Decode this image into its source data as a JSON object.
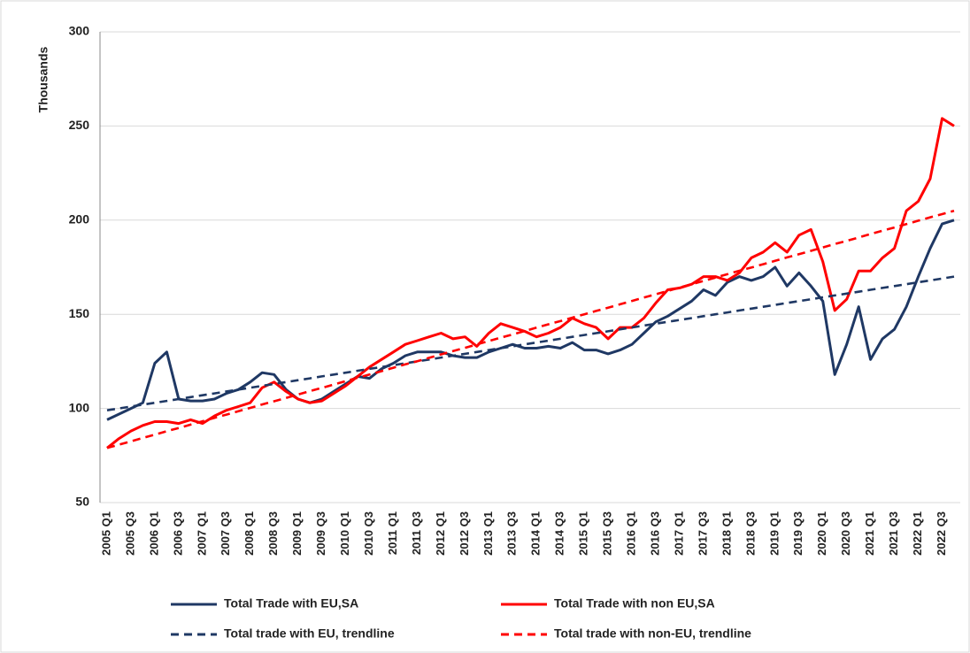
{
  "chart_data": {
    "type": "line",
    "y_label": "Thousands",
    "categories": [
      "2005 Q1",
      null,
      "2005 Q3",
      null,
      "2006 Q1",
      null,
      "2006 Q3",
      null,
      "2007 Q1",
      null,
      "2007 Q3",
      null,
      "2008 Q1",
      null,
      "2008 Q3",
      null,
      "2009 Q1",
      null,
      "2009 Q3",
      null,
      "2010 Q1",
      null,
      "2010 Q3",
      null,
      "2011 Q1",
      null,
      "2011 Q3",
      null,
      "2012 Q1",
      null,
      "2012 Q3",
      null,
      "2013 Q1",
      null,
      "2013 Q3",
      null,
      "2014 Q1",
      null,
      "2014 Q3",
      null,
      "2015 Q1",
      null,
      "2015 Q3",
      null,
      "2016 Q1",
      null,
      "2016 Q3",
      null,
      "2017 Q1",
      null,
      "2017 Q3",
      null,
      "2018 Q1",
      null,
      "2018 Q3",
      null,
      "2019 Q1",
      null,
      "2019 Q3",
      null,
      "2020 Q1",
      null,
      "2020 Q3",
      null,
      "2021 Q1",
      null,
      "2021 Q3",
      null,
      "2022 Q1",
      null,
      "2022 Q3",
      null
    ],
    "series": [
      {
        "name": "Total Trade with EU,SA",
        "color": "#1f3864",
        "dash": false,
        "values": [
          94,
          97,
          100,
          103,
          124,
          130,
          105,
          104,
          104,
          105,
          108,
          110,
          114,
          119,
          118,
          110,
          105,
          103,
          105,
          109,
          113,
          117,
          116,
          121,
          124,
          128,
          130,
          130,
          130,
          128,
          127,
          127,
          130,
          132,
          134,
          132,
          132,
          133,
          132,
          135,
          131,
          131,
          129,
          131,
          134,
          140,
          146,
          149,
          153,
          157,
          163,
          160,
          167,
          170,
          168,
          170,
          175,
          165,
          172,
          165,
          157,
          118,
          134,
          154,
          126,
          137,
          142,
          154,
          170,
          185,
          198,
          200
        ]
      },
      {
        "name": "Total Trade with non EU,SA",
        "color": "#ff0000",
        "dash": false,
        "values": [
          79,
          84,
          88,
          91,
          93,
          93,
          92,
          94,
          92,
          96,
          99,
          101,
          103,
          111,
          114,
          109,
          105,
          103,
          104,
          108,
          112,
          117,
          122,
          126,
          130,
          134,
          136,
          138,
          140,
          137,
          138,
          133,
          140,
          145,
          143,
          141,
          138,
          140,
          143,
          148,
          145,
          143,
          137,
          143,
          143,
          148,
          156,
          163,
          164,
          166,
          170,
          170,
          168,
          172,
          180,
          183,
          188,
          183,
          192,
          195,
          178,
          152,
          158,
          173,
          173,
          180,
          185,
          205,
          210,
          222,
          254,
          250
        ]
      },
      {
        "name": "Total trade with EU, trendline",
        "color": "#1f3864",
        "dash": true,
        "values": [
          99,
          100,
          101,
          102,
          103,
          104,
          105,
          106,
          107,
          108,
          109,
          110,
          111,
          112,
          113,
          114,
          115,
          116,
          117,
          118,
          119,
          120,
          121,
          122,
          123,
          124,
          125,
          126,
          127,
          128,
          129,
          130,
          131,
          132,
          133,
          134,
          135,
          136,
          137,
          138,
          139,
          140,
          141,
          142,
          143,
          144,
          145,
          146,
          147,
          148,
          149,
          150,
          151,
          152,
          153,
          154,
          155,
          156,
          157,
          158,
          159,
          160,
          161,
          162,
          163,
          164,
          165,
          166,
          167,
          168,
          169,
          170
        ]
      },
      {
        "name": "Total trade with non-EU, trendline",
        "color": "#ff0000",
        "dash": true,
        "values": [
          79,
          80.8,
          82.5,
          84.3,
          86.1,
          87.9,
          89.6,
          91.4,
          93.2,
          95,
          96.7,
          98.5,
          100.3,
          102.1,
          103.8,
          105.6,
          107.4,
          109.2,
          110.9,
          112.7,
          114.5,
          116.3,
          118,
          119.8,
          121.6,
          123.4,
          125.1,
          126.9,
          128.7,
          130.5,
          132.2,
          134,
          135.8,
          137.6,
          139.3,
          141.1,
          142.9,
          144.7,
          146.4,
          148.2,
          150,
          151.8,
          153.5,
          155.3,
          157.1,
          158.9,
          160.6,
          162.4,
          164.2,
          166,
          167.7,
          169.5,
          171.3,
          173.1,
          174.8,
          176.6,
          178.4,
          180.2,
          181.9,
          183.7,
          185.5,
          187.3,
          189,
          190.8,
          192.6,
          194.4,
          196.1,
          197.9,
          199.7,
          201.5,
          203.2,
          205
        ]
      }
    ],
    "ylim": [
      50,
      300
    ],
    "yticks": [
      50,
      100,
      150,
      200,
      250,
      300
    ],
    "grid": true,
    "legend": "bottom"
  }
}
